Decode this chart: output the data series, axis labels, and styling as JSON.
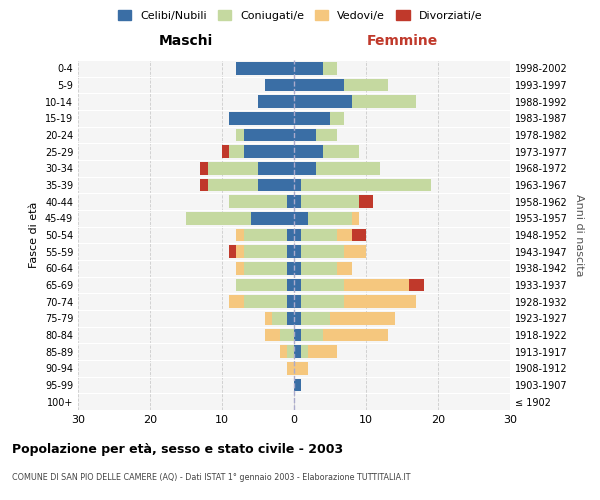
{
  "age_groups": [
    "100+",
    "95-99",
    "90-94",
    "85-89",
    "80-84",
    "75-79",
    "70-74",
    "65-69",
    "60-64",
    "55-59",
    "50-54",
    "45-49",
    "40-44",
    "35-39",
    "30-34",
    "25-29",
    "20-24",
    "15-19",
    "10-14",
    "5-9",
    "0-4"
  ],
  "birth_years": [
    "≤ 1902",
    "1903-1907",
    "1908-1912",
    "1913-1917",
    "1918-1922",
    "1923-1927",
    "1928-1932",
    "1933-1937",
    "1938-1942",
    "1943-1947",
    "1948-1952",
    "1953-1957",
    "1958-1962",
    "1963-1967",
    "1968-1972",
    "1973-1977",
    "1978-1982",
    "1983-1987",
    "1988-1992",
    "1993-1997",
    "1998-2002"
  ],
  "males": {
    "celibi": [
      0,
      0,
      0,
      0,
      0,
      1,
      1,
      1,
      1,
      1,
      1,
      6,
      1,
      5,
      5,
      7,
      7,
      9,
      5,
      4,
      8
    ],
    "coniugati": [
      0,
      0,
      0,
      1,
      2,
      2,
      6,
      7,
      6,
      6,
      6,
      9,
      8,
      7,
      7,
      2,
      1,
      0,
      0,
      0,
      0
    ],
    "vedovi": [
      0,
      0,
      1,
      1,
      2,
      1,
      2,
      0,
      1,
      1,
      1,
      0,
      0,
      0,
      0,
      0,
      0,
      0,
      0,
      0,
      0
    ],
    "divorziati": [
      0,
      0,
      0,
      0,
      0,
      0,
      0,
      0,
      0,
      1,
      0,
      0,
      0,
      1,
      1,
      1,
      0,
      0,
      0,
      0,
      0
    ]
  },
  "females": {
    "nubili": [
      0,
      1,
      0,
      1,
      1,
      1,
      1,
      1,
      1,
      1,
      1,
      2,
      1,
      1,
      3,
      4,
      3,
      5,
      8,
      7,
      4
    ],
    "coniugate": [
      0,
      0,
      0,
      1,
      3,
      4,
      6,
      6,
      5,
      6,
      5,
      6,
      8,
      18,
      9,
      5,
      3,
      2,
      9,
      6,
      2
    ],
    "vedove": [
      0,
      0,
      2,
      4,
      9,
      9,
      10,
      9,
      2,
      3,
      2,
      1,
      0,
      0,
      0,
      0,
      0,
      0,
      0,
      0,
      0
    ],
    "divorziate": [
      0,
      0,
      0,
      0,
      0,
      0,
      0,
      2,
      0,
      0,
      2,
      0,
      2,
      0,
      0,
      0,
      0,
      0,
      0,
      0,
      0
    ]
  },
  "colors": {
    "celibi": "#3a6ea5",
    "coniugati": "#c5d9a0",
    "vedovi": "#f5c77e",
    "divorziati": "#c0392b"
  },
  "xlim": 30,
  "title": "Popolazione per età, sesso e stato civile - 2003",
  "subtitle": "COMUNE DI SAN PIO DELLE CAMERE (AQ) - Dati ISTAT 1° gennaio 2003 - Elaborazione TUTTITALIA.IT",
  "xlabel_left": "Maschi",
  "xlabel_right": "Femmine",
  "ylabel_left": "Fasce di età",
  "ylabel_right": "Anni di nascita",
  "legend_labels": [
    "Celibi/Nubili",
    "Coniugati/e",
    "Vedovi/e",
    "Divorziati/e"
  ],
  "bg_color": "#ffffff",
  "plot_bg": "#f5f5f5",
  "grid_color": "#cccccc"
}
